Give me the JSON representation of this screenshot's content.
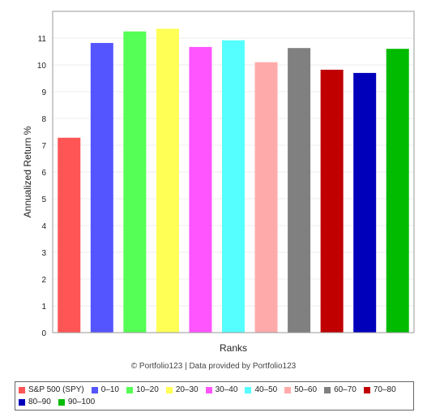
{
  "chart_data": {
    "type": "bar",
    "categories": [
      "S&P 500 (SPY)",
      "0-10",
      "10-20",
      "20-30",
      "30-40",
      "40-50",
      "50-60",
      "60-70",
      "70-80",
      "80-90",
      "90-100"
    ],
    "values": [
      7.28,
      10.82,
      11.25,
      11.35,
      10.67,
      10.92,
      10.1,
      10.63,
      9.82,
      9.7,
      10.6
    ],
    "colors": [
      "#ff5555",
      "#5555ff",
      "#55ff55",
      "#ffff55",
      "#ff55ff",
      "#55ffff",
      "#ffaaaa",
      "#808080",
      "#c00000",
      "#0000bb",
      "#00bb00"
    ],
    "xlabel": "Ranks",
    "ylabel": "Annualized Return %",
    "ylim": [
      0,
      12
    ],
    "yticks": [
      0,
      1,
      2,
      3,
      4,
      5,
      6,
      7,
      8,
      9,
      10,
      11
    ],
    "grid": true,
    "legend_position": "bottom",
    "credit": "© Portfolio123 | Data provided by Portfolio123"
  },
  "legend_labels": [
    "S&P 500 (SPY)",
    "0–10",
    "10–20",
    "20–30",
    "30–40",
    "40–50",
    "50–60",
    "60–70",
    "70–80",
    "80–90",
    "90–100"
  ]
}
